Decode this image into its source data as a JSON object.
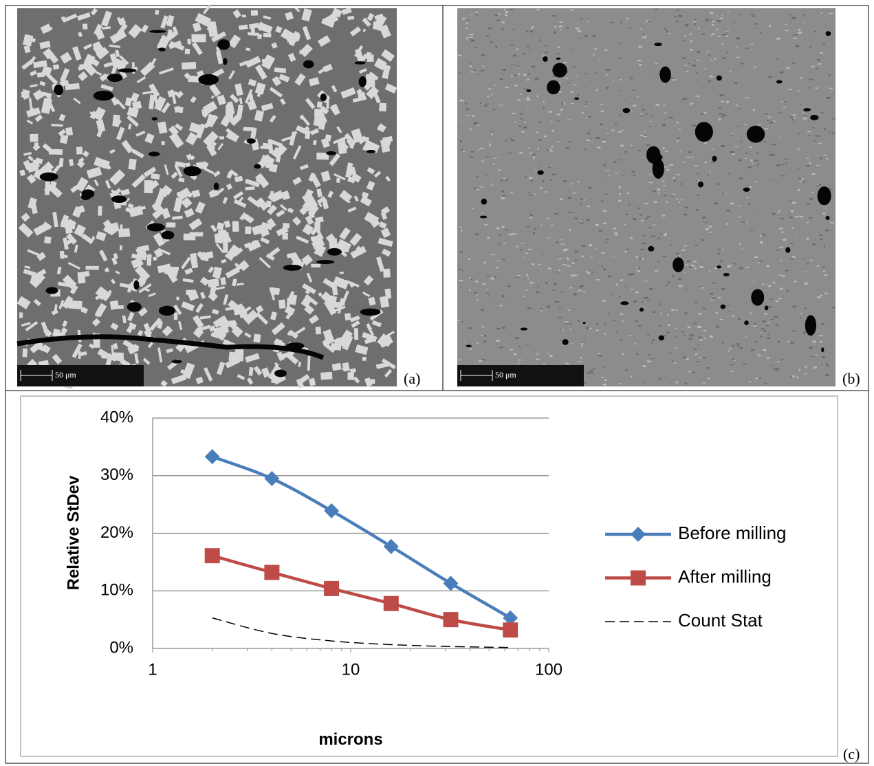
{
  "panels": [
    {
      "label": "(a)",
      "scale_bar": "50 μm"
    },
    {
      "label": "(b)",
      "scale_bar": "50 μm"
    }
  ],
  "chart_panel_label": "(c)",
  "chart_data": {
    "type": "line",
    "xlabel": "microns",
    "ylabel": "Relative StDev",
    "x": [
      2,
      4,
      8,
      16,
      32,
      64
    ],
    "series": [
      {
        "name": "Before milling",
        "color": "#4a7ebb",
        "marker": "diamond",
        "dashed": false,
        "values": [
          33.3,
          29.5,
          23.9,
          17.7,
          11.3,
          5.3
        ]
      },
      {
        "name": "After milling",
        "color": "#be4b48",
        "marker": "square",
        "dashed": false,
        "values": [
          16.1,
          13.2,
          10.4,
          7.8,
          5.0,
          3.2
        ]
      },
      {
        "name": "Count Stat",
        "color": "#000000",
        "marker": "none",
        "dashed": true,
        "values": [
          5.3,
          2.6,
          1.3,
          0.66,
          0.33,
          0.16
        ]
      }
    ],
    "xscale": "log",
    "xlim": [
      1,
      100
    ],
    "xticks": [
      1,
      10,
      100
    ],
    "ylim": [
      0,
      40
    ],
    "yticks": [
      {
        "value": 0,
        "label": "0%"
      },
      {
        "value": 10,
        "label": "10%"
      },
      {
        "value": 20,
        "label": "20%"
      },
      {
        "value": 30,
        "label": "30%"
      },
      {
        "value": 40,
        "label": "40%"
      }
    ],
    "grid": true,
    "legend": "right"
  }
}
